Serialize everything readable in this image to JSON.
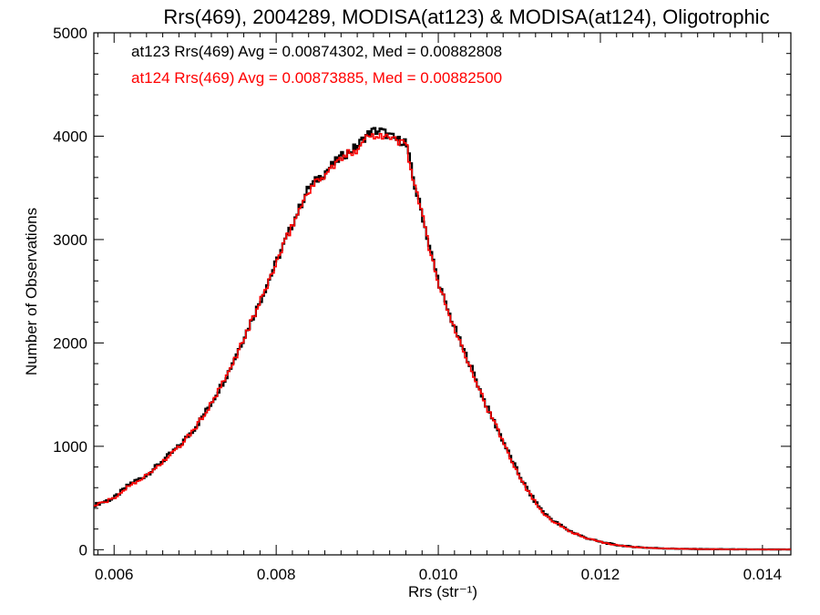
{
  "chart_data": {
    "type": "line",
    "title": "Rrs(469), 2004289, MODISA(at123) & MODISA(at124), Oligotrophic",
    "xlabel": "Rrs (str⁻¹)",
    "ylabel": "Number of Observations",
    "xlim": [
      0.00575,
      0.01435
    ],
    "ylim": [
      -50,
      5000
    ],
    "xticks": [
      "0.006",
      "0.008",
      "0.010",
      "0.012",
      "0.014"
    ],
    "yticks": [
      "0",
      "1000",
      "2000",
      "3000",
      "4000",
      "5000"
    ],
    "grid": false,
    "legend_position": "top-left",
    "annotations": [
      {
        "text": "at123 Rrs(469) Avg = 0.00874302, Med = 0.00882808",
        "color": "#000000"
      },
      {
        "text": "at124 Rrs(469) Avg = 0.00873885, Med = 0.00882500",
        "color": "#ff0000"
      }
    ],
    "x": [
      0.00575,
      0.006,
      0.0062,
      0.0064,
      0.0066,
      0.0068,
      0.007,
      0.0072,
      0.0074,
      0.0076,
      0.0078,
      0.008,
      0.0082,
      0.0084,
      0.0086,
      0.0088,
      0.009,
      0.0091,
      0.0092,
      0.0093,
      0.0094,
      0.0095,
      0.0096,
      0.0097,
      0.0098,
      0.0099,
      0.01,
      0.0101,
      0.0102,
      0.0103,
      0.0104,
      0.0105,
      0.0106,
      0.0107,
      0.0108,
      0.0109,
      0.011,
      0.0111,
      0.0112,
      0.0113,
      0.0114,
      0.0115,
      0.0116,
      0.0118,
      0.012,
      0.0122,
      0.0124,
      0.0126,
      0.0128,
      0.013,
      0.0132,
      0.0134,
      0.0136,
      0.0138,
      0.014,
      0.01435
    ],
    "series": [
      {
        "name": "at123",
        "color": "#000000",
        "values": [
          430,
          500,
          640,
          720,
          860,
          1000,
          1180,
          1420,
          1700,
          2050,
          2400,
          2780,
          3150,
          3500,
          3650,
          3800,
          3900,
          4000,
          4050,
          4050,
          4000,
          3960,
          3950,
          3550,
          3250,
          2900,
          2600,
          2350,
          2150,
          1950,
          1780,
          1570,
          1380,
          1220,
          1050,
          880,
          720,
          580,
          460,
          360,
          290,
          240,
          190,
          120,
          75,
          45,
          28,
          18,
          12,
          8,
          6,
          5,
          4,
          3,
          2,
          2
        ]
      },
      {
        "name": "at124",
        "color": "#ff0000",
        "values": [
          425,
          495,
          630,
          715,
          850,
          990,
          1175,
          1410,
          1690,
          2040,
          2390,
          2770,
          3140,
          3480,
          3630,
          3780,
          3880,
          3990,
          4010,
          4020,
          3980,
          3950,
          3940,
          3540,
          3240,
          2890,
          2590,
          2345,
          2140,
          1945,
          1775,
          1565,
          1375,
          1215,
          1045,
          875,
          715,
          575,
          455,
          355,
          285,
          238,
          188,
          118,
          74,
          44,
          27,
          17,
          11,
          8,
          6,
          5,
          4,
          3,
          2,
          2
        ]
      }
    ]
  }
}
